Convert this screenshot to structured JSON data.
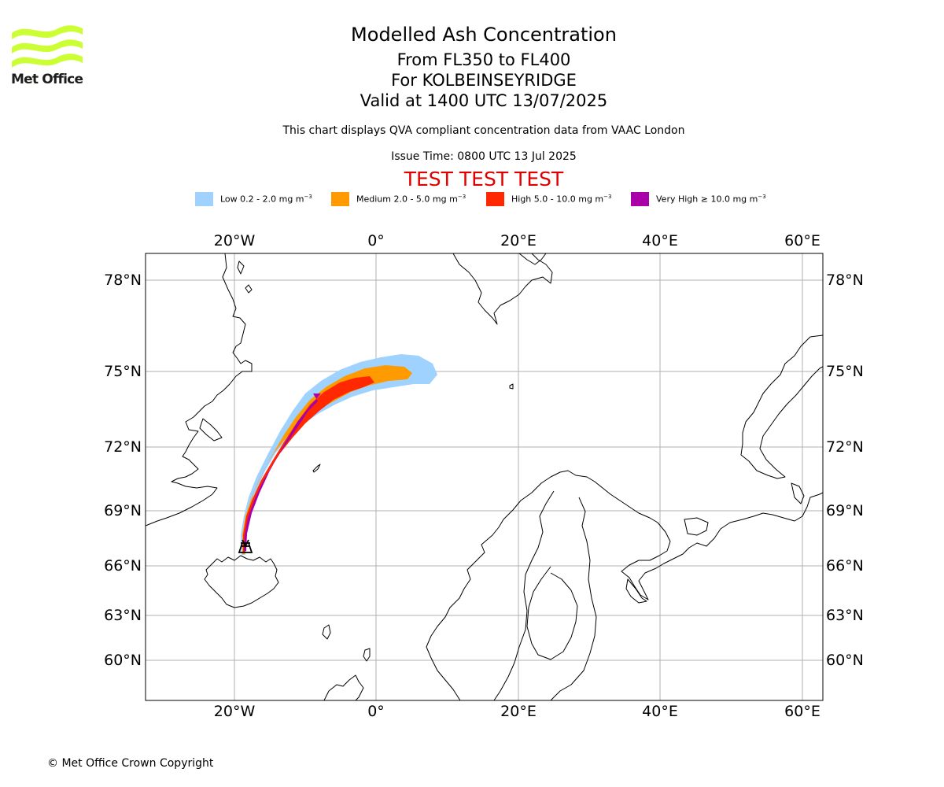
{
  "logo": {
    "text": "Met Office",
    "color": "#ccff33"
  },
  "header": {
    "title": "Modelled Ash Concentration",
    "level_range": "From FL350 to FL400",
    "volcano": "For KOLBEINSEYRIDGE",
    "valid_time": "Valid at 1400 UTC 13/07/2025",
    "note": "This chart displays QVA compliant concentration data from VAAC London",
    "issue_time": "Issue Time: 0800 UTC 13 Jul 2025",
    "test_banner": "TEST TEST TEST"
  },
  "legend": [
    {
      "label": "Low 0.2 - 2.0 mg m",
      "exp": "−3",
      "color": "#a0d2ff"
    },
    {
      "label": "Medium 2.0 - 5.0 mg m",
      "exp": "−3",
      "color": "#ff9a00"
    },
    {
      "label": "High 5.0 - 10.0 mg m",
      "exp": "−3",
      "color": "#ff2800"
    },
    {
      "label": "Very High  ≥  10.0 mg m",
      "exp": "−3",
      "color": "#aa00aa"
    }
  ],
  "map": {
    "lon_ticks": [
      "20°W",
      "0°",
      "20°E",
      "40°E",
      "60°E"
    ],
    "lat_ticks": [
      "78°N",
      "75°N",
      "72°N",
      "69°N",
      "66°N",
      "63°N",
      "60°N"
    ],
    "volcano_symbol": "volcano-marker",
    "gridline_color": "#b0b0b0"
  },
  "footer": {
    "copyright": "© Met Office Crown Copyright"
  }
}
